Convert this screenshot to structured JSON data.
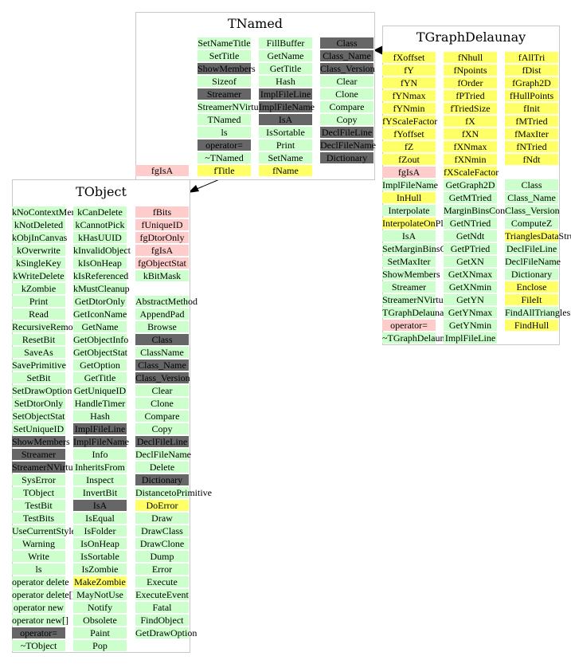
{
  "diagram": {
    "palette": {
      "method": "#ccffcc",
      "inherited": "#666666",
      "data_member": "#ffff66",
      "isa_member": "#ffcccc",
      "border": "#c8c8c8"
    },
    "classes": {
      "tnamed": {
        "title": "TNamed",
        "fgisa": "fgIsA",
        "columns": [
          {
            "items": [
              {
                "t": "SetNameTitle",
                "k": "g"
              },
              {
                "t": "SetTitle",
                "k": "g"
              },
              {
                "t": "ShowMembers",
                "k": "d"
              },
              {
                "t": "Sizeof",
                "k": "g"
              },
              {
                "t": "Streamer",
                "k": "d"
              },
              {
                "t": "StreamerNVirtual",
                "k": "g"
              },
              {
                "t": "TNamed",
                "k": "g"
              },
              {
                "t": "ls",
                "k": "g"
              },
              {
                "t": "operator=",
                "k": "d"
              },
              {
                "t": "~TNamed",
                "k": "g"
              },
              {
                "t": "fTitle",
                "k": "y"
              }
            ]
          },
          {
            "items": [
              {
                "t": "FillBuffer",
                "k": "g"
              },
              {
                "t": "GetName",
                "k": "g"
              },
              {
                "t": "GetTitle",
                "k": "g"
              },
              {
                "t": "Hash",
                "k": "g"
              },
              {
                "t": "ImplFileLine",
                "k": "d"
              },
              {
                "t": "ImplFileName",
                "k": "d"
              },
              {
                "t": "IsA",
                "k": "d"
              },
              {
                "t": "IsSortable",
                "k": "g"
              },
              {
                "t": "Print",
                "k": "g"
              },
              {
                "t": "SetName",
                "k": "g"
              },
              {
                "t": "fName",
                "k": "y"
              }
            ]
          },
          {
            "items": [
              {
                "t": "Class",
                "k": "d"
              },
              {
                "t": "Class_Name",
                "k": "d"
              },
              {
                "t": "Class_Version",
                "k": "d"
              },
              {
                "t": "Clear",
                "k": "g"
              },
              {
                "t": "Clone",
                "k": "g"
              },
              {
                "t": "Compare",
                "k": "g"
              },
              {
                "t": "Copy",
                "k": "g"
              },
              {
                "t": "DeclFileLine",
                "k": "d"
              },
              {
                "t": "DeclFileName",
                "k": "d"
              },
              {
                "t": "Dictionary",
                "k": "d"
              }
            ]
          }
        ]
      },
      "tgraphdelaunay": {
        "title": "TGraphDelaunay",
        "columns": [
          {
            "items": [
              {
                "t": "fXoffset",
                "k": "y"
              },
              {
                "t": "fY",
                "k": "y"
              },
              {
                "t": "fYN",
                "k": "y"
              },
              {
                "t": "fYNmax",
                "k": "y"
              },
              {
                "t": "fYNmin",
                "k": "y"
              },
              {
                "t": "fYScaleFactor",
                "k": "y"
              },
              {
                "t": "fYoffset",
                "k": "y"
              },
              {
                "t": "fZ",
                "k": "y"
              },
              {
                "t": "fZout",
                "k": "y"
              },
              {
                "t": "fgIsA",
                "k": "p"
              },
              {
                "t": "ImplFileName",
                "k": "g"
              },
              {
                "t": "InHull",
                "k": "y"
              },
              {
                "t": "Interpolate",
                "k": "g"
              },
              {
                "t": "InterpolateOnPlane",
                "k": "y"
              },
              {
                "t": "IsA",
                "k": "g"
              },
              {
                "t": "SetMarginBinsContent",
                "k": "g"
              },
              {
                "t": "SetMaxIter",
                "k": "g"
              },
              {
                "t": "ShowMembers",
                "k": "g"
              },
              {
                "t": "Streamer",
                "k": "g"
              },
              {
                "t": "StreamerNVirtual",
                "k": "g"
              },
              {
                "t": "TGraphDelaunay",
                "k": "g"
              },
              {
                "t": "operator=",
                "k": "p"
              },
              {
                "t": "~TGraphDelaunay",
                "k": "g"
              }
            ]
          },
          {
            "items": [
              {
                "t": "fNhull",
                "k": "y"
              },
              {
                "t": "fNpoints",
                "k": "y"
              },
              {
                "t": "fOrder",
                "k": "y"
              },
              {
                "t": "fPTried",
                "k": "y"
              },
              {
                "t": "fTriedSize",
                "k": "y"
              },
              {
                "t": "fX",
                "k": "y"
              },
              {
                "t": "fXN",
                "k": "y"
              },
              {
                "t": "fXNmax",
                "k": "y"
              },
              {
                "t": "fXNmin",
                "k": "y"
              },
              {
                "t": "fXScaleFactor",
                "k": "y"
              },
              {
                "t": "GetGraph2D",
                "k": "g"
              },
              {
                "t": "GetMTried",
                "k": "g"
              },
              {
                "t": "MarginBinsContent",
                "k": "g"
              },
              {
                "t": "GetNTried",
                "k": "g"
              },
              {
                "t": "GetNdt",
                "k": "g"
              },
              {
                "t": "GetPTried",
                "k": "g"
              },
              {
                "t": "GetXN",
                "k": "g"
              },
              {
                "t": "GetXNmax",
                "k": "g"
              },
              {
                "t": "GetXNmin",
                "k": "g"
              },
              {
                "t": "GetYN",
                "k": "g"
              },
              {
                "t": "GetYNmax",
                "k": "g"
              },
              {
                "t": "GetYNmin",
                "k": "g"
              },
              {
                "t": "ImplFileLine",
                "k": "g"
              }
            ]
          },
          {
            "items": [
              {
                "t": "fAllTri",
                "k": "y"
              },
              {
                "t": "fDist",
                "k": "y"
              },
              {
                "t": "fGraph2D",
                "k": "y"
              },
              {
                "t": "fHullPoints",
                "k": "y"
              },
              {
                "t": "fInit",
                "k": "y"
              },
              {
                "t": "fMTried",
                "k": "y"
              },
              {
                "t": "fMaxIter",
                "k": "y"
              },
              {
                "t": "fNTried",
                "k": "y"
              },
              {
                "t": "fNdt",
                "k": "y"
              },
              {
                "t": "",
                "k": "n"
              },
              {
                "t": "Class",
                "k": "g"
              },
              {
                "t": "Class_Name",
                "k": "g"
              },
              {
                "t": "Class_Version",
                "k": "g"
              },
              {
                "t": "ComputeZ",
                "k": "g"
              },
              {
                "t": "TrianglesDataStruct",
                "k": "y"
              },
              {
                "t": "DeclFileLine",
                "k": "g"
              },
              {
                "t": "DeclFileName",
                "k": "g"
              },
              {
                "t": "Dictionary",
                "k": "g"
              },
              {
                "t": "Enclose",
                "k": "y"
              },
              {
                "t": "FileIt",
                "k": "y"
              },
              {
                "t": "FindAllTriangles",
                "k": "g"
              },
              {
                "t": "FindHull",
                "k": "y"
              }
            ]
          }
        ]
      },
      "tobject": {
        "title": "TObject",
        "columns": [
          {
            "items": [
              {
                "t": "kNoContextMenu",
                "k": "g"
              },
              {
                "t": "kNotDeleted",
                "k": "g"
              },
              {
                "t": "kObjInCanvas",
                "k": "g"
              },
              {
                "t": "kOverwrite",
                "k": "g"
              },
              {
                "t": "kSingleKey",
                "k": "g"
              },
              {
                "t": "kWriteDelete",
                "k": "g"
              },
              {
                "t": "kZombie",
                "k": "g"
              },
              {
                "t": "Print",
                "k": "g"
              },
              {
                "t": "Read",
                "k": "g"
              },
              {
                "t": "RecursiveRemove",
                "k": "g"
              },
              {
                "t": "ResetBit",
                "k": "g"
              },
              {
                "t": "SaveAs",
                "k": "g"
              },
              {
                "t": "SavePrimitive",
                "k": "g"
              },
              {
                "t": "SetBit",
                "k": "g"
              },
              {
                "t": "SetDrawOption",
                "k": "g"
              },
              {
                "t": "SetDtorOnly",
                "k": "g"
              },
              {
                "t": "SetObjectStat",
                "k": "g"
              },
              {
                "t": "SetUniqueID",
                "k": "g"
              },
              {
                "t": "ShowMembers",
                "k": "d"
              },
              {
                "t": "Streamer",
                "k": "d"
              },
              {
                "t": "StreamerNVirtual",
                "k": "d"
              },
              {
                "t": "SysError",
                "k": "g"
              },
              {
                "t": "TObject",
                "k": "g"
              },
              {
                "t": "TestBit",
                "k": "g"
              },
              {
                "t": "TestBits",
                "k": "g"
              },
              {
                "t": "UseCurrentStyle",
                "k": "g"
              },
              {
                "t": "Warning",
                "k": "g"
              },
              {
                "t": "Write",
                "k": "g"
              },
              {
                "t": "ls",
                "k": "g"
              },
              {
                "t": "operator delete",
                "k": "g"
              },
              {
                "t": "operator delete[]",
                "k": "g"
              },
              {
                "t": "operator new",
                "k": "g"
              },
              {
                "t": "operator new[]",
                "k": "g"
              },
              {
                "t": "operator=",
                "k": "d"
              },
              {
                "t": "~TObject",
                "k": "g"
              }
            ]
          },
          {
            "items": [
              {
                "t": "kCanDelete",
                "k": "g"
              },
              {
                "t": "kCannotPick",
                "k": "g"
              },
              {
                "t": "kHasUUID",
                "k": "g"
              },
              {
                "t": "kInvalidObject",
                "k": "g"
              },
              {
                "t": "kIsOnHeap",
                "k": "g"
              },
              {
                "t": "kIsReferenced",
                "k": "g"
              },
              {
                "t": "kMustCleanup",
                "k": "g"
              },
              {
                "t": "GetDtorOnly",
                "k": "g"
              },
              {
                "t": "GetIconName",
                "k": "g"
              },
              {
                "t": "GetName",
                "k": "g"
              },
              {
                "t": "GetObjectInfo",
                "k": "g"
              },
              {
                "t": "GetObjectStat",
                "k": "g"
              },
              {
                "t": "GetOption",
                "k": "g"
              },
              {
                "t": "GetTitle",
                "k": "g"
              },
              {
                "t": "GetUniqueID",
                "k": "g"
              },
              {
                "t": "HandleTimer",
                "k": "g"
              },
              {
                "t": "Hash",
                "k": "g"
              },
              {
                "t": "ImplFileLine",
                "k": "d"
              },
              {
                "t": "ImplFileName",
                "k": "d"
              },
              {
                "t": "Info",
                "k": "g"
              },
              {
                "t": "InheritsFrom",
                "k": "g"
              },
              {
                "t": "Inspect",
                "k": "g"
              },
              {
                "t": "InvertBit",
                "k": "g"
              },
              {
                "t": "IsA",
                "k": "d"
              },
              {
                "t": "IsEqual",
                "k": "g"
              },
              {
                "t": "IsFolder",
                "k": "g"
              },
              {
                "t": "IsOnHeap",
                "k": "g"
              },
              {
                "t": "IsSortable",
                "k": "g"
              },
              {
                "t": "IsZombie",
                "k": "g"
              },
              {
                "t": "MakeZombie",
                "k": "y"
              },
              {
                "t": "MayNotUse",
                "k": "g"
              },
              {
                "t": "Notify",
                "k": "g"
              },
              {
                "t": "Obsolete",
                "k": "g"
              },
              {
                "t": "Paint",
                "k": "g"
              },
              {
                "t": "Pop",
                "k": "g"
              }
            ]
          },
          {
            "items": [
              {
                "t": "fBits",
                "k": "p"
              },
              {
                "t": "fUniqueID",
                "k": "p"
              },
              {
                "t": "fgDtorOnly",
                "k": "p"
              },
              {
                "t": "fgIsA",
                "k": "p"
              },
              {
                "t": "fgObjectStat",
                "k": "p"
              },
              {
                "t": "kBitMask",
                "k": "g"
              },
              {
                "t": "",
                "k": "n"
              },
              {
                "t": "AbstractMethod",
                "k": "g"
              },
              {
                "t": "AppendPad",
                "k": "g"
              },
              {
                "t": "Browse",
                "k": "g"
              },
              {
                "t": "Class",
                "k": "d"
              },
              {
                "t": "ClassName",
                "k": "g"
              },
              {
                "t": "Class_Name",
                "k": "d"
              },
              {
                "t": "Class_Version",
                "k": "d"
              },
              {
                "t": "Clear",
                "k": "g"
              },
              {
                "t": "Clone",
                "k": "g"
              },
              {
                "t": "Compare",
                "k": "g"
              },
              {
                "t": "Copy",
                "k": "g"
              },
              {
                "t": "DeclFileLine",
                "k": "d"
              },
              {
                "t": "DeclFileName",
                "k": "g"
              },
              {
                "t": "Delete",
                "k": "g"
              },
              {
                "t": "Dictionary",
                "k": "d"
              },
              {
                "t": "DistancetoPrimitive",
                "k": "g"
              },
              {
                "t": "DoError",
                "k": "y"
              },
              {
                "t": "Draw",
                "k": "g"
              },
              {
                "t": "DrawClass",
                "k": "g"
              },
              {
                "t": "DrawClone",
                "k": "g"
              },
              {
                "t": "Dump",
                "k": "g"
              },
              {
                "t": "Error",
                "k": "g"
              },
              {
                "t": "Execute",
                "k": "g"
              },
              {
                "t": "ExecuteEvent",
                "k": "g"
              },
              {
                "t": "Fatal",
                "k": "g"
              },
              {
                "t": "FindObject",
                "k": "g"
              },
              {
                "t": "GetDrawOption",
                "k": "g"
              }
            ]
          }
        ]
      }
    }
  }
}
